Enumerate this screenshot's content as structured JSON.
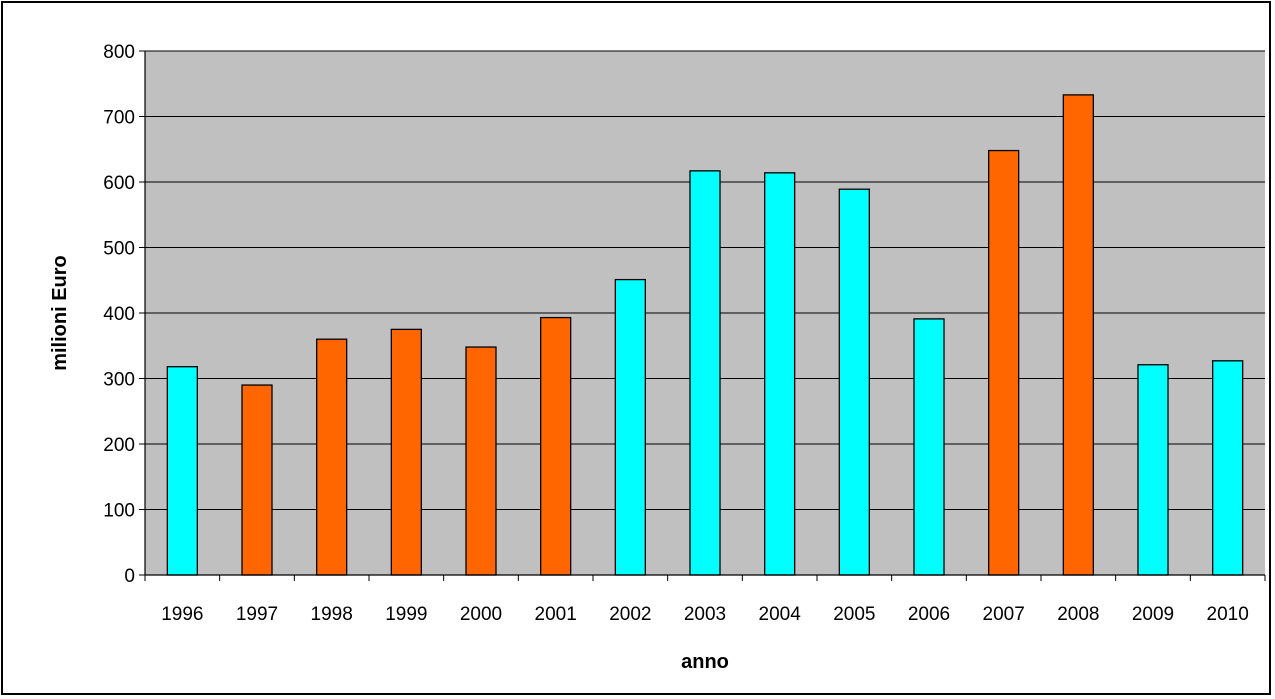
{
  "chart_data": {
    "type": "bar",
    "title": "",
    "xlabel": "anno",
    "ylabel": "milioni Euro",
    "ylim": [
      0,
      800
    ],
    "yticks": [
      0,
      100,
      200,
      300,
      400,
      500,
      600,
      700,
      800
    ],
    "grid": true,
    "categories": [
      "1996",
      "1997",
      "1998",
      "1999",
      "2000",
      "2001",
      "2002",
      "2003",
      "2004",
      "2005",
      "2006",
      "2007",
      "2008",
      "2009",
      "2010"
    ],
    "values": [
      318,
      290,
      360,
      375,
      348,
      393,
      451,
      617,
      614,
      589,
      391,
      648,
      733,
      321,
      327
    ],
    "bar_colors": [
      "#00ffff",
      "#ff6600",
      "#ff6600",
      "#ff6600",
      "#ff6600",
      "#ff6600",
      "#00ffff",
      "#00ffff",
      "#00ffff",
      "#00ffff",
      "#00ffff",
      "#ff6600",
      "#ff6600",
      "#00ffff",
      "#00ffff"
    ],
    "plot_background": "#c0c0c0",
    "gridline_color": "#000000"
  }
}
